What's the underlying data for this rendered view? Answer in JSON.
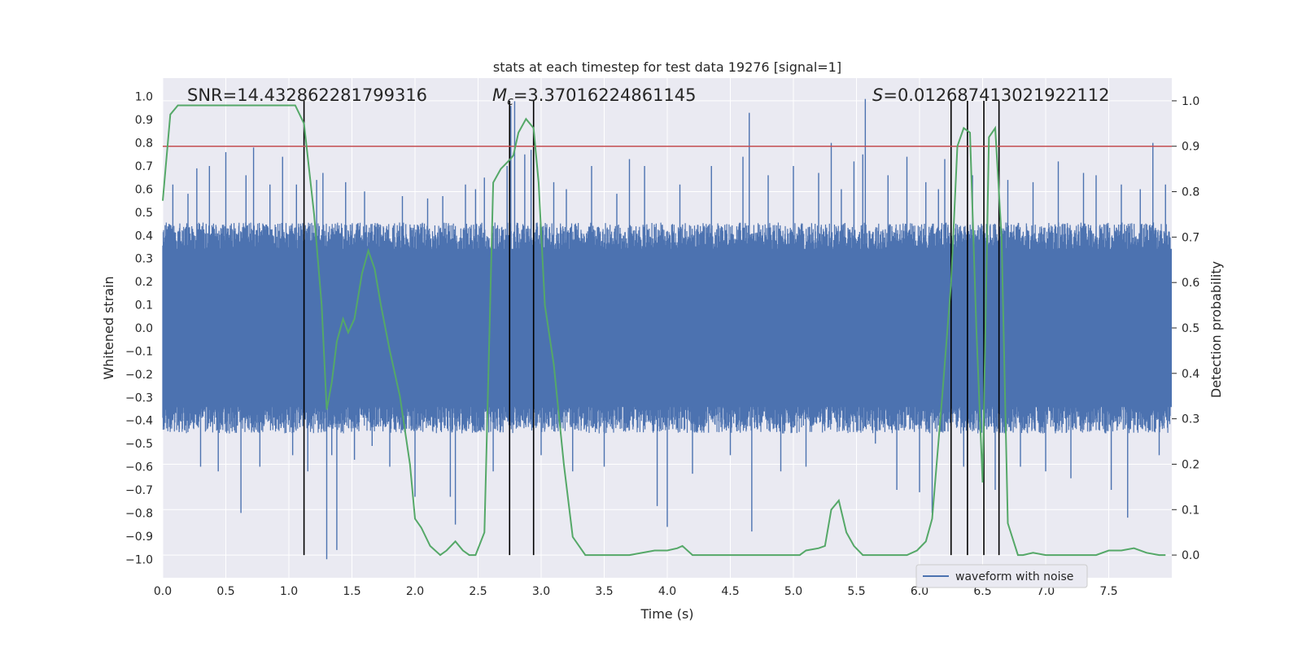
{
  "chart_data": {
    "type": "line",
    "title": "stats at each timestep for test data 19276 [signal=1]",
    "xlabel": "Time (s)",
    "ylabel_left": "Whitened strain",
    "ylabel_right": "Detection probability",
    "xlim": [
      0.0,
      8.0
    ],
    "ylim_left": [
      -1.08,
      1.08
    ],
    "ylim_right": [
      -0.05,
      1.05
    ],
    "x_ticks": [
      "0.0",
      "0.5",
      "1.0",
      "1.5",
      "2.0",
      "2.5",
      "3.0",
      "3.5",
      "4.0",
      "4.5",
      "5.0",
      "5.5",
      "6.0",
      "6.5",
      "7.0",
      "7.5"
    ],
    "y_left_ticks": [
      "1.0",
      "0.9",
      "0.8",
      "0.7",
      "0.6",
      "0.5",
      "0.4",
      "0.3",
      "0.2",
      "0.1",
      "0.0",
      "-0.1",
      "-0.2",
      "-0.3",
      "-0.4",
      "-0.5",
      "-0.6",
      "-0.7",
      "-0.8",
      "-0.9",
      "-1.0"
    ],
    "y_right_ticks": [
      "1.0",
      "0.9",
      "0.8",
      "0.7",
      "0.6",
      "0.5",
      "0.4",
      "0.3",
      "0.2",
      "0.1",
      "0.0"
    ],
    "annotations": {
      "snr": "SNR=14.432862281799316",
      "mc_symbol": "M",
      "mc_sub": "c",
      "mc_value": "=3.37016224861145",
      "s_symbol": "S",
      "s_value": "=0.012687413021922112"
    },
    "threshold": {
      "probability": 0.9,
      "color": "#c44e52"
    },
    "vertical_lines_s": [
      1.12,
      2.75,
      2.94,
      6.25,
      6.38,
      6.51,
      6.63
    ],
    "legend": {
      "label": "waveform with noise",
      "placement": "lower-right"
    },
    "series": [
      {
        "name": "waveform with noise",
        "color": "#4c72b0",
        "envelope_abs": 0.38,
        "spikes": [
          [
            0.03,
            -0.2
          ],
          [
            0.05,
            0.45
          ],
          [
            0.08,
            0.62
          ],
          [
            0.13,
            -0.45
          ],
          [
            0.2,
            0.58
          ],
          [
            0.27,
            0.69
          ],
          [
            0.3,
            -0.6
          ],
          [
            0.37,
            0.7
          ],
          [
            0.44,
            -0.62
          ],
          [
            0.5,
            0.76
          ],
          [
            0.62,
            -0.8
          ],
          [
            0.66,
            0.66
          ],
          [
            0.72,
            0.78
          ],
          [
            0.77,
            -0.6
          ],
          [
            0.85,
            0.62
          ],
          [
            0.95,
            0.74
          ],
          [
            1.03,
            -0.55
          ],
          [
            1.06,
            0.62
          ],
          [
            1.15,
            -0.62
          ],
          [
            1.22,
            0.64
          ],
          [
            1.27,
            0.67
          ],
          [
            1.3,
            -1.0
          ],
          [
            1.34,
            -0.55
          ],
          [
            1.38,
            -0.96
          ],
          [
            1.45,
            0.63
          ],
          [
            1.52,
            -0.57
          ],
          [
            1.6,
            0.59
          ],
          [
            1.66,
            -0.51
          ],
          [
            1.8,
            -0.6
          ],
          [
            1.9,
            0.57
          ],
          [
            2.0,
            -0.73
          ],
          [
            2.1,
            0.56
          ],
          [
            2.22,
            0.57
          ],
          [
            2.28,
            -0.73
          ],
          [
            2.32,
            -0.85
          ],
          [
            2.4,
            0.62
          ],
          [
            2.48,
            0.6
          ],
          [
            2.55,
            0.65
          ],
          [
            2.62,
            -0.62
          ],
          [
            2.73,
            0.7
          ],
          [
            2.76,
            0.96
          ],
          [
            2.79,
            0.98
          ],
          [
            2.87,
            0.75
          ],
          [
            2.92,
            0.77
          ],
          [
            3.0,
            -0.55
          ],
          [
            3.1,
            0.63
          ],
          [
            3.2,
            0.6
          ],
          [
            3.25,
            -0.62
          ],
          [
            3.4,
            0.7
          ],
          [
            3.5,
            -0.6
          ],
          [
            3.6,
            0.58
          ],
          [
            3.7,
            0.73
          ],
          [
            3.82,
            0.7
          ],
          [
            3.92,
            -0.77
          ],
          [
            4.0,
            -0.86
          ],
          [
            4.1,
            0.62
          ],
          [
            4.2,
            -0.63
          ],
          [
            4.35,
            0.7
          ],
          [
            4.5,
            -0.55
          ],
          [
            4.6,
            0.74
          ],
          [
            4.65,
            0.93
          ],
          [
            4.67,
            -0.88
          ],
          [
            4.8,
            0.66
          ],
          [
            4.9,
            -0.62
          ],
          [
            5.0,
            0.7
          ],
          [
            5.1,
            -0.6
          ],
          [
            5.2,
            0.67
          ],
          [
            5.3,
            0.8
          ],
          [
            5.38,
            0.6
          ],
          [
            5.48,
            0.72
          ],
          [
            5.55,
            0.75
          ],
          [
            5.57,
            0.99
          ],
          [
            5.65,
            -0.5
          ],
          [
            5.75,
            0.66
          ],
          [
            5.82,
            -0.7
          ],
          [
            5.9,
            0.74
          ],
          [
            6.0,
            -0.71
          ],
          [
            6.05,
            0.63
          ],
          [
            6.1,
            -0.8
          ],
          [
            6.15,
            0.6
          ],
          [
            6.2,
            0.73
          ],
          [
            6.35,
            -0.6
          ],
          [
            6.42,
            0.66
          ],
          [
            6.6,
            -0.7
          ],
          [
            6.7,
            0.64
          ],
          [
            6.8,
            -0.6
          ],
          [
            6.9,
            0.63
          ],
          [
            7.0,
            -0.62
          ],
          [
            7.1,
            0.72
          ],
          [
            7.2,
            -0.65
          ],
          [
            7.3,
            0.67
          ],
          [
            7.4,
            0.66
          ],
          [
            7.52,
            -0.7
          ],
          [
            7.6,
            0.62
          ],
          [
            7.65,
            -0.82
          ],
          [
            7.75,
            0.6
          ],
          [
            7.85,
            0.8
          ],
          [
            7.9,
            -0.55
          ],
          [
            7.95,
            0.62
          ]
        ]
      },
      {
        "name": "Detection probability",
        "color": "#55a868",
        "x": [
          0.0,
          0.06,
          0.12,
          0.3,
          0.6,
          0.9,
          1.05,
          1.12,
          1.2,
          1.26,
          1.3,
          1.34,
          1.38,
          1.43,
          1.47,
          1.52,
          1.58,
          1.63,
          1.68,
          1.73,
          1.8,
          1.88,
          1.96,
          2.0,
          2.05,
          2.12,
          2.2,
          2.25,
          2.32,
          2.38,
          2.43,
          2.48,
          2.55,
          2.62,
          2.68,
          2.75,
          2.78,
          2.82,
          2.88,
          2.94,
          2.98,
          3.03,
          3.1,
          3.18,
          3.25,
          3.35,
          3.5,
          3.7,
          3.9,
          4.0,
          4.08,
          4.12,
          4.2,
          4.3,
          4.5,
          4.7,
          4.9,
          5.0,
          5.05,
          5.1,
          5.2,
          5.25,
          5.3,
          5.36,
          5.42,
          5.48,
          5.55,
          5.7,
          5.9,
          5.98,
          6.05,
          6.1,
          6.18,
          6.25,
          6.3,
          6.35,
          6.4,
          6.45,
          6.5,
          6.55,
          6.6,
          6.65,
          6.7,
          6.78,
          6.82,
          6.9,
          7.0,
          7.2,
          7.4,
          7.5,
          7.6,
          7.7,
          7.8,
          7.9,
          7.95
        ],
        "y": [
          0.78,
          0.97,
          0.99,
          0.99,
          0.99,
          0.99,
          0.99,
          0.95,
          0.75,
          0.55,
          0.32,
          0.38,
          0.47,
          0.52,
          0.49,
          0.52,
          0.62,
          0.67,
          0.63,
          0.55,
          0.45,
          0.35,
          0.2,
          0.08,
          0.06,
          0.02,
          0.0,
          0.01,
          0.03,
          0.01,
          0.0,
          0.0,
          0.05,
          0.82,
          0.85,
          0.87,
          0.88,
          0.93,
          0.96,
          0.94,
          0.82,
          0.55,
          0.42,
          0.2,
          0.04,
          0.0,
          0.0,
          0.0,
          0.01,
          0.01,
          0.015,
          0.02,
          0.0,
          0.0,
          0.0,
          0.0,
          0.0,
          0.0,
          0.0,
          0.01,
          0.015,
          0.02,
          0.1,
          0.12,
          0.05,
          0.02,
          0.0,
          0.0,
          0.0,
          0.01,
          0.03,
          0.08,
          0.35,
          0.6,
          0.9,
          0.94,
          0.93,
          0.5,
          0.16,
          0.92,
          0.94,
          0.7,
          0.07,
          0.0,
          0.0,
          0.005,
          0.0,
          0.0,
          0.0,
          0.01,
          0.01,
          0.015,
          0.005,
          0.0,
          0.0
        ]
      }
    ]
  }
}
